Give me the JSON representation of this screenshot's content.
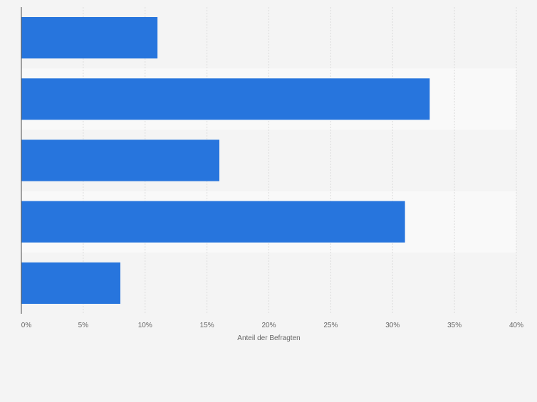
{
  "colors": {
    "background": "#f4f4f4",
    "band_alt": "#f9f9f9",
    "bar": "#2775dd",
    "grid": "#dcdcdc",
    "axis": "#4a4a4a",
    "tick_text": "#666666"
  },
  "chart_data": {
    "type": "bar",
    "orientation": "horizontal",
    "categories": [
      "",
      "",
      "",
      "",
      ""
    ],
    "values": [
      11,
      33,
      16,
      31,
      8
    ],
    "xlabel": "Anteil der Befragten",
    "ylabel": "",
    "xlim": [
      0,
      40
    ],
    "xticks": [
      0,
      5,
      10,
      15,
      20,
      25,
      30,
      35,
      40
    ],
    "tick_labels": [
      "0%",
      "5%",
      "10%",
      "15%",
      "20%",
      "25%",
      "30%",
      "35%",
      "40%"
    ],
    "grid": true,
    "legend": "none"
  }
}
